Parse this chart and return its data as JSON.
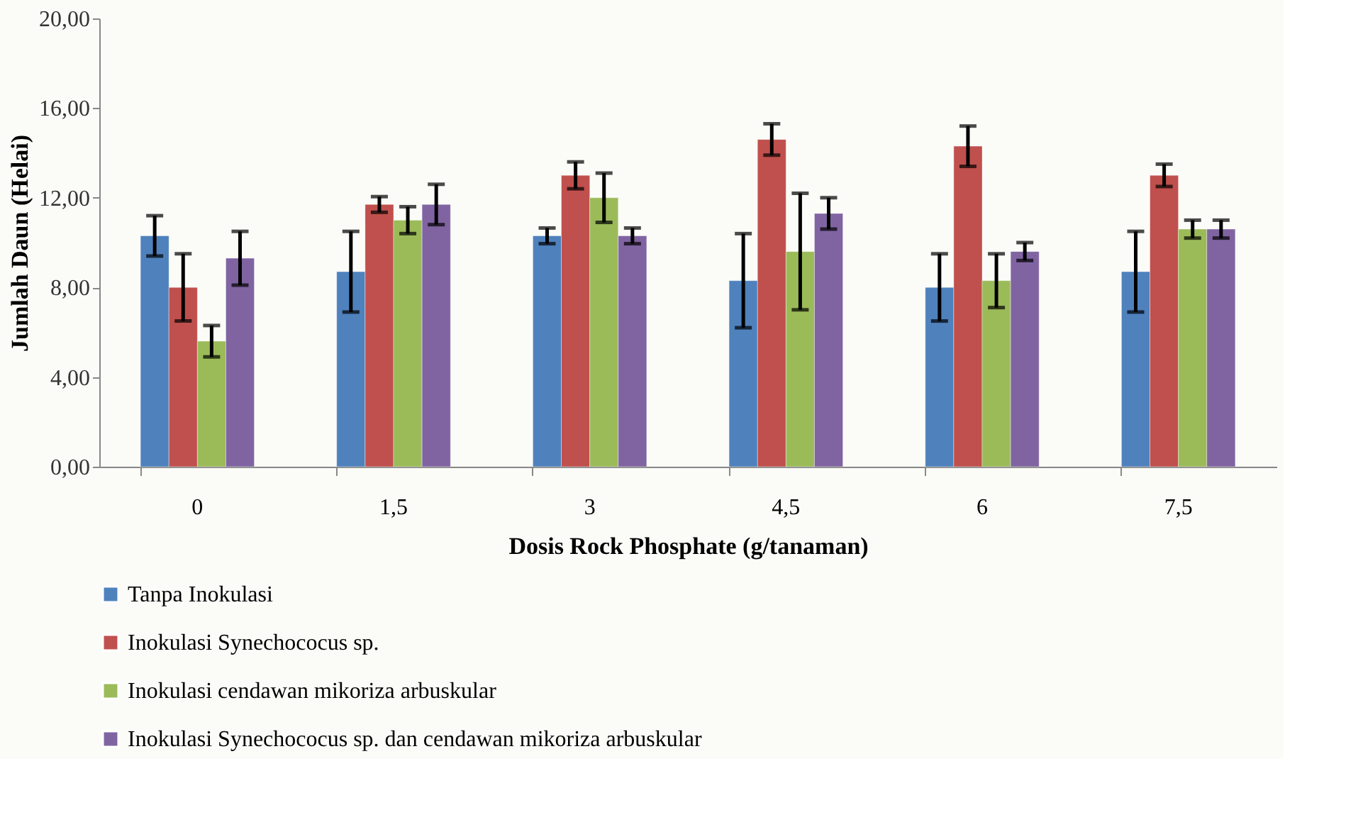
{
  "chart_data": {
    "type": "bar",
    "xlabel": "Dosis Rock Phosphate (g/tanaman)",
    "ylabel": "Jumlah Daun (Helai)",
    "categories": [
      "0",
      "1,5",
      "3",
      "4,5",
      "6",
      "7,5"
    ],
    "series": [
      {
        "name": "Tanpa Inokulasi",
        "color": "#4f81bd",
        "values": [
          10.3,
          8.7,
          10.3,
          8.3,
          8.0,
          8.7
        ],
        "errors": [
          0.9,
          1.8,
          0.35,
          2.1,
          1.5,
          1.8
        ]
      },
      {
        "name": "Inokulasi Synechococus sp.",
        "color": "#c0504d",
        "values": [
          8.0,
          11.7,
          13.0,
          14.6,
          14.3,
          13.0
        ],
        "errors": [
          1.5,
          0.35,
          0.6,
          0.7,
          0.9,
          0.5
        ]
      },
      {
        "name": "Inokulasi cendawan mikoriza arbuskular",
        "color": "#9bbb59",
        "values": [
          5.6,
          11.0,
          12.0,
          9.6,
          8.3,
          10.6
        ],
        "errors": [
          0.7,
          0.6,
          1.1,
          2.6,
          1.2,
          0.4
        ]
      },
      {
        "name": "Inokulasi Synechococus sp. dan cendawan mikoriza arbuskular",
        "color": "#8064a2",
        "values": [
          9.3,
          11.7,
          10.3,
          11.3,
          9.6,
          10.6
        ],
        "errors": [
          1.2,
          0.9,
          0.35,
          0.7,
          0.4,
          0.4
        ]
      }
    ],
    "ylim": [
      0,
      20
    ],
    "yticks": [
      {
        "value": 0,
        "label": "0,00"
      },
      {
        "value": 4,
        "label": "4,00"
      },
      {
        "value": 8,
        "label": "8,00"
      },
      {
        "value": 12,
        "label": "12,00"
      },
      {
        "value": 16,
        "label": "16,00"
      },
      {
        "value": 20,
        "label": "20,00"
      }
    ],
    "grid": false,
    "legend": "bottom left"
  }
}
